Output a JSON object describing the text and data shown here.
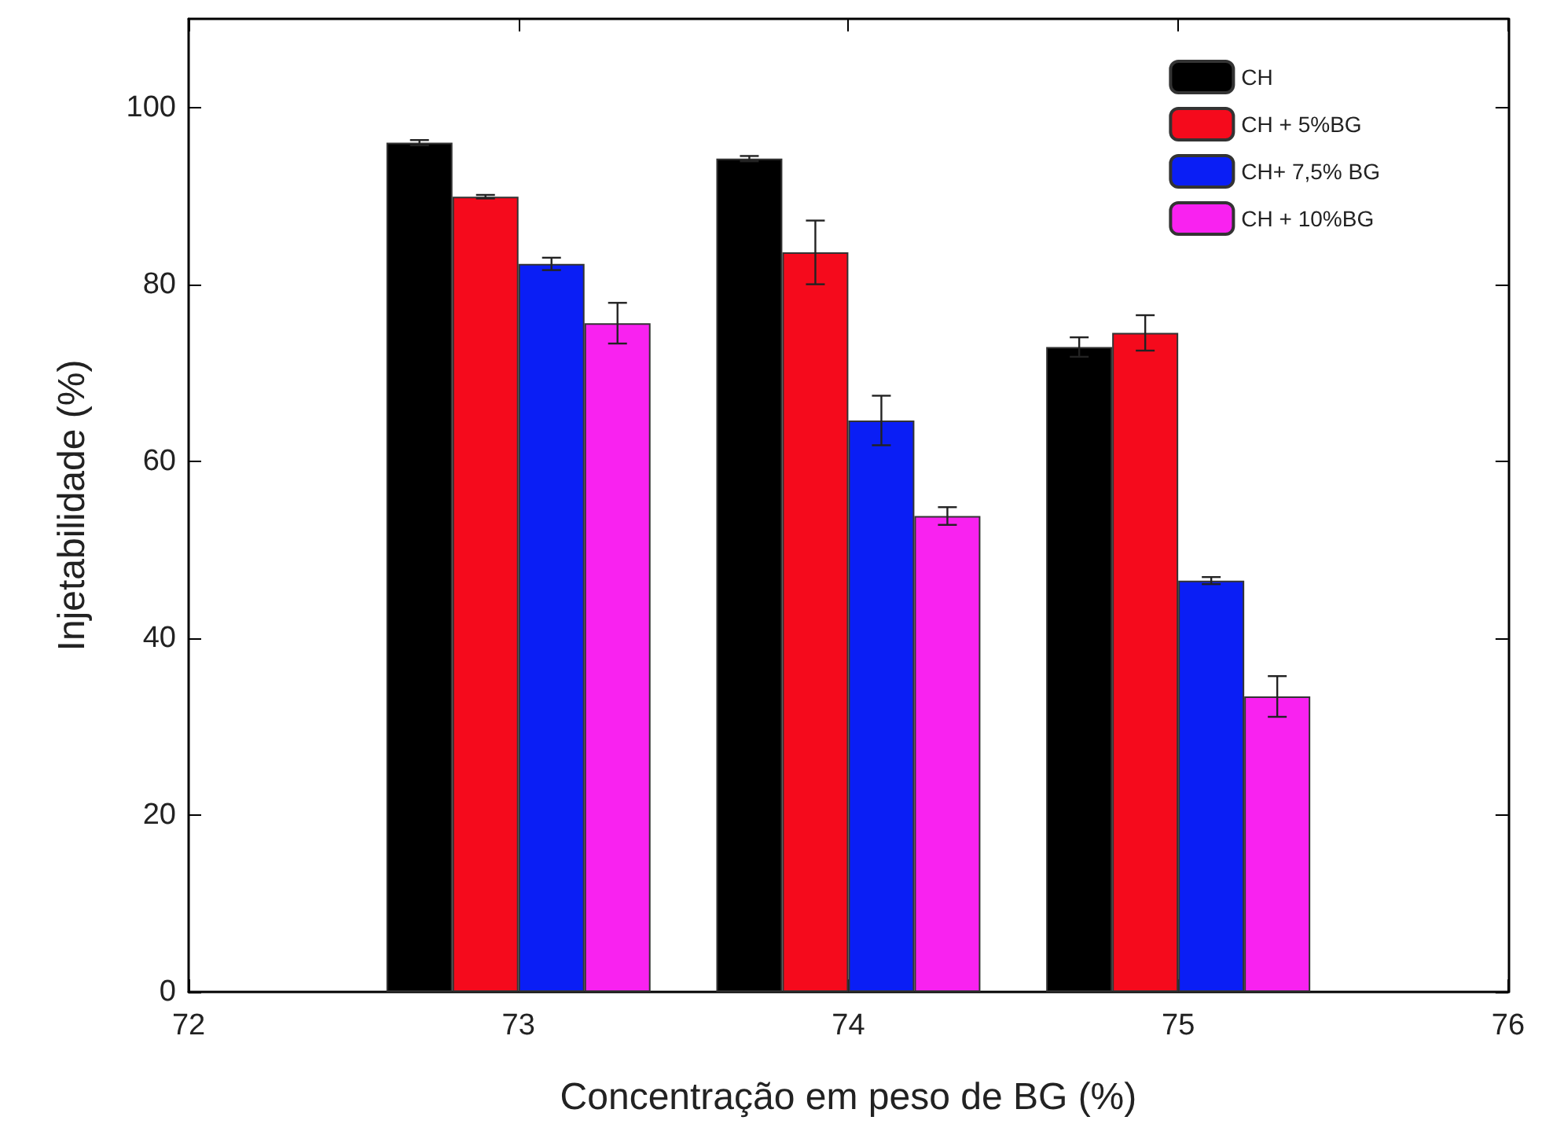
{
  "chart_data": {
    "type": "bar",
    "xlabel": "Concentração em peso de BG (%)",
    "ylabel": "Injetabilidade (%)",
    "x": [
      73,
      74,
      75
    ],
    "series": [
      {
        "name": "CH",
        "color": "#000000",
        "values": [
          96,
          94.2,
          72.9
        ],
        "errors": [
          0.3,
          0.3,
          1.1
        ]
      },
      {
        "name": "CH + 5%BG",
        "color": "#f50a1c",
        "values": [
          89.9,
          83.6,
          74.5
        ],
        "errors": [
          0.2,
          3.6,
          2
        ]
      },
      {
        "name": "CH+ 7,5% BG",
        "color": "#0a1ef5",
        "values": [
          82.3,
          64.6,
          46.5
        ],
        "errors": [
          0.7,
          2.8,
          0.4
        ]
      },
      {
        "name": "CH + 10%BG",
        "color": "#f922f0",
        "values": [
          75.6,
          53.8,
          33.4
        ],
        "errors": [
          2.3,
          1,
          2.3
        ]
      }
    ],
    "xlim": [
      72,
      76
    ],
    "xticks": [
      72,
      73,
      74,
      75,
      76
    ],
    "ylim": [
      0,
      110
    ],
    "yticks": [
      0,
      20,
      40,
      60,
      80,
      100
    ],
    "legend": "top right"
  }
}
